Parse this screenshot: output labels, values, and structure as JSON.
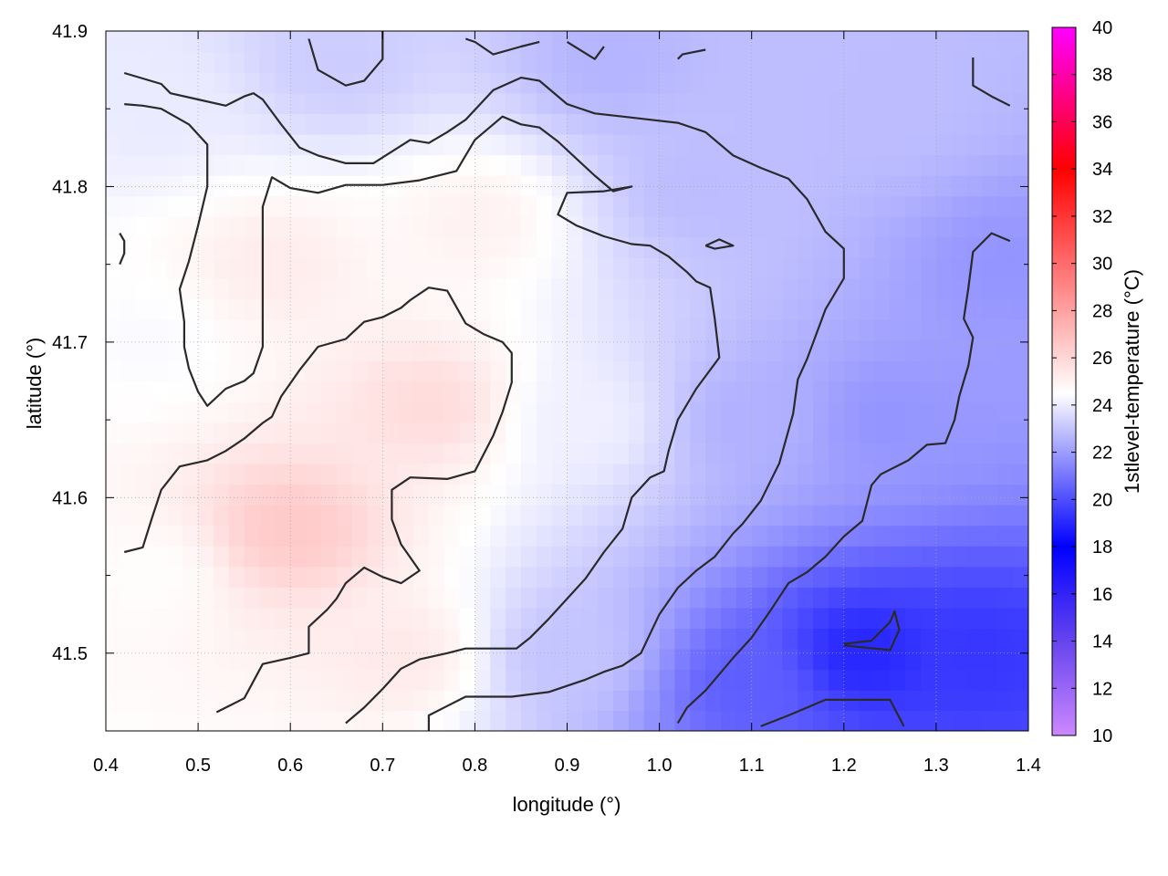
{
  "chart_data": {
    "type": "heatmap",
    "title": "",
    "xlabel": "longitude (°)",
    "ylabel": "latitude (°)",
    "xlim": [
      0.4,
      1.4
    ],
    "ylim": [
      41.45,
      41.9
    ],
    "xticks": [
      "0.4",
      "0.5",
      "0.6",
      "0.7",
      "0.8",
      "0.9",
      "1.0",
      "1.1",
      "1.2",
      "1.3",
      "1.4"
    ],
    "yticks": [
      "41.5",
      "41.6",
      "41.7",
      "41.8",
      "41.9"
    ],
    "grid": true,
    "colorbar": {
      "label": "1stlevel-temperature (°C)",
      "range": [
        10,
        40
      ],
      "ticks": [
        "10",
        "12",
        "14",
        "16",
        "18",
        "20",
        "22",
        "24",
        "26",
        "28",
        "30",
        "32",
        "34",
        "36",
        "38",
        "40"
      ],
      "palette": [
        {
          "value": 10,
          "color": "#cc88ff"
        },
        {
          "value": 14,
          "color": "#6644ee"
        },
        {
          "value": 18,
          "color": "#0000ff"
        },
        {
          "value": 24.5,
          "color": "#ffffff"
        },
        {
          "value": 34,
          "color": "#ff0000"
        },
        {
          "value": 40,
          "color": "#ff00ff"
        }
      ]
    },
    "field_anchors": [
      {
        "lon": 0.45,
        "lat": 41.85,
        "temp": 24.0
      },
      {
        "lon": 0.45,
        "lat": 41.7,
        "temp": 24.4
      },
      {
        "lon": 0.45,
        "lat": 41.55,
        "temp": 24.6
      },
      {
        "lon": 0.6,
        "lat": 41.58,
        "temp": 26.5
      },
      {
        "lon": 0.58,
        "lat": 41.75,
        "temp": 25.2
      },
      {
        "lon": 0.75,
        "lat": 41.66,
        "temp": 25.8
      },
      {
        "lon": 0.72,
        "lat": 41.5,
        "temp": 25.3
      },
      {
        "lon": 0.65,
        "lat": 41.88,
        "temp": 23.2
      },
      {
        "lon": 0.95,
        "lat": 41.88,
        "temp": 22.6
      },
      {
        "lon": 0.92,
        "lat": 41.65,
        "temp": 24.1
      },
      {
        "lon": 0.9,
        "lat": 41.5,
        "temp": 23.0
      },
      {
        "lon": 1.05,
        "lat": 41.8,
        "temp": 22.8
      },
      {
        "lon": 1.1,
        "lat": 41.65,
        "temp": 22.5
      },
      {
        "lon": 1.1,
        "lat": 41.48,
        "temp": 20.4
      },
      {
        "lon": 1.25,
        "lat": 41.85,
        "temp": 22.8
      },
      {
        "lon": 1.25,
        "lat": 41.65,
        "temp": 21.8
      },
      {
        "lon": 1.22,
        "lat": 41.5,
        "temp": 19.0
      },
      {
        "lon": 1.35,
        "lat": 41.5,
        "temp": 19.4
      },
      {
        "lon": 1.38,
        "lat": 41.75,
        "temp": 21.8
      },
      {
        "lon": 0.8,
        "lat": 41.78,
        "temp": 25.0
      }
    ],
    "contours": [
      [
        [
          0.42,
          41.873
        ],
        [
          0.46,
          41.866
        ],
        [
          0.47,
          41.86
        ],
        [
          0.5,
          41.856
        ],
        [
          0.53,
          41.852
        ],
        [
          0.55,
          41.858
        ],
        [
          0.56,
          41.86
        ],
        [
          0.57,
          41.856
        ],
        [
          0.59,
          41.84
        ],
        [
          0.61,
          41.825
        ],
        [
          0.63,
          41.82
        ],
        [
          0.66,
          41.815
        ],
        [
          0.69,
          41.815
        ],
        [
          0.73,
          41.83
        ],
        [
          0.75,
          41.828
        ],
        [
          0.77,
          41.835
        ],
        [
          0.79,
          41.843
        ],
        [
          0.82,
          41.862
        ],
        [
          0.85,
          41.87
        ],
        [
          0.87,
          41.868
        ],
        [
          0.9,
          41.853
        ],
        [
          0.93,
          41.847
        ],
        [
          0.96,
          41.845
        ],
        [
          0.99,
          41.843
        ],
        [
          1.02,
          41.841
        ],
        [
          1.05,
          41.835
        ],
        [
          1.08,
          41.82
        ],
        [
          1.11,
          41.812
        ],
        [
          1.14,
          41.805
        ],
        [
          1.16,
          41.792
        ],
        [
          1.18,
          41.771
        ],
        [
          1.2,
          41.76
        ],
        [
          1.2,
          41.741
        ],
        [
          1.18,
          41.721
        ],
        [
          1.16,
          41.689
        ],
        [
          1.15,
          41.676
        ],
        [
          1.145,
          41.654
        ],
        [
          1.13,
          41.622
        ],
        [
          1.11,
          41.598
        ],
        [
          1.09,
          41.583
        ],
        [
          1.08,
          41.577
        ],
        [
          1.06,
          41.562
        ],
        [
          1.04,
          41.553
        ],
        [
          1.02,
          41.542
        ],
        [
          1.0,
          41.525
        ],
        [
          0.98,
          41.5
        ],
        [
          0.96,
          41.492
        ],
        [
          0.94,
          41.488
        ],
        [
          0.92,
          41.483
        ],
        [
          0.88,
          41.475
        ],
        [
          0.84,
          41.472
        ],
        [
          0.79,
          41.472
        ],
        [
          0.77,
          41.466
        ],
        [
          0.75,
          41.46
        ],
        [
          0.75,
          41.45
        ]
      ],
      [
        [
          0.42,
          41.853
        ],
        [
          0.44,
          41.852
        ],
        [
          0.46,
          41.85
        ],
        [
          0.49,
          41.84
        ],
        [
          0.51,
          41.827
        ],
        [
          0.51,
          41.8
        ],
        [
          0.5,
          41.775
        ],
        [
          0.49,
          41.752
        ],
        [
          0.48,
          41.734
        ],
        [
          0.485,
          41.713
        ],
        [
          0.485,
          41.697
        ],
        [
          0.49,
          41.683
        ],
        [
          0.5,
          41.668
        ],
        [
          0.51,
          41.659
        ],
        [
          0.53,
          41.67
        ],
        [
          0.55,
          41.675
        ],
        [
          0.56,
          41.68
        ],
        [
          0.57,
          41.697
        ],
        [
          0.57,
          41.715
        ],
        [
          0.57,
          41.752
        ],
        [
          0.57,
          41.787
        ],
        [
          0.58,
          41.806
        ],
        [
          0.6,
          41.799
        ],
        [
          0.63,
          41.796
        ],
        [
          0.66,
          41.801
        ],
        [
          0.7,
          41.801
        ],
        [
          0.74,
          41.804
        ],
        [
          0.78,
          41.81
        ],
        [
          0.8,
          41.83
        ],
        [
          0.83,
          41.845
        ],
        [
          0.85,
          41.84
        ],
        [
          0.87,
          41.838
        ],
        [
          0.89,
          41.829
        ],
        [
          0.91,
          41.818
        ],
        [
          0.93,
          41.807
        ],
        [
          0.95,
          41.797
        ],
        [
          0.97,
          41.8
        ],
        [
          0.94,
          41.797
        ],
        [
          0.9,
          41.796
        ],
        [
          0.89,
          41.782
        ],
        [
          0.91,
          41.775
        ],
        [
          0.94,
          41.768
        ],
        [
          0.97,
          41.763
        ],
        [
          0.99,
          41.762
        ],
        [
          1.01,
          41.755
        ],
        [
          1.03,
          41.745
        ],
        [
          1.04,
          41.739
        ],
        [
          1.055,
          41.735
        ],
        [
          1.06,
          41.715
        ],
        [
          1.065,
          41.69
        ],
        [
          1.04,
          41.67
        ],
        [
          1.02,
          41.65
        ],
        [
          1.01,
          41.63
        ],
        [
          1.005,
          41.617
        ],
        [
          0.99,
          41.613
        ],
        [
          0.97,
          41.6
        ],
        [
          0.96,
          41.58
        ],
        [
          0.94,
          41.565
        ],
        [
          0.92,
          41.548
        ],
        [
          0.9,
          41.535
        ],
        [
          0.88,
          41.522
        ],
        [
          0.86,
          41.51
        ],
        [
          0.845,
          41.503
        ],
        [
          0.82,
          41.503
        ],
        [
          0.79,
          41.503
        ],
        [
          0.77,
          41.5
        ],
        [
          0.74,
          41.496
        ],
        [
          0.72,
          41.49
        ],
        [
          0.7,
          41.477
        ],
        [
          0.68,
          41.465
        ],
        [
          0.66,
          41.455
        ]
      ],
      [
        [
          0.42,
          41.565
        ],
        [
          0.44,
          41.568
        ],
        [
          0.45,
          41.587
        ],
        [
          0.46,
          41.605
        ],
        [
          0.48,
          41.62
        ],
        [
          0.51,
          41.624
        ],
        [
          0.53,
          41.63
        ],
        [
          0.55,
          41.638
        ],
        [
          0.57,
          41.648
        ],
        [
          0.58,
          41.652
        ],
        [
          0.59,
          41.665
        ],
        [
          0.61,
          41.682
        ],
        [
          0.63,
          41.697
        ],
        [
          0.66,
          41.702
        ],
        [
          0.68,
          41.713
        ],
        [
          0.7,
          41.716
        ],
        [
          0.72,
          41.722
        ],
        [
          0.73,
          41.727
        ],
        [
          0.75,
          41.735
        ],
        [
          0.77,
          41.733
        ],
        [
          0.79,
          41.712
        ],
        [
          0.81,
          41.705
        ],
        [
          0.83,
          41.7
        ],
        [
          0.84,
          41.693
        ],
        [
          0.84,
          41.674
        ],
        [
          0.83,
          41.655
        ],
        [
          0.82,
          41.64
        ],
        [
          0.8,
          41.617
        ],
        [
          0.77,
          41.612
        ],
        [
          0.73,
          41.613
        ],
        [
          0.71,
          41.605
        ],
        [
          0.71,
          41.586
        ],
        [
          0.72,
          41.57
        ],
        [
          0.74,
          41.553
        ],
        [
          0.72,
          41.545
        ],
        [
          0.7,
          41.549
        ],
        [
          0.68,
          41.555
        ],
        [
          0.66,
          41.545
        ],
        [
          0.65,
          41.535
        ],
        [
          0.64,
          41.528
        ],
        [
          0.62,
          41.517
        ],
        [
          0.62,
          41.5
        ],
        [
          0.6,
          41.497
        ],
        [
          0.57,
          41.493
        ],
        [
          0.55,
          41.471
        ],
        [
          0.52,
          41.462
        ]
      ],
      [
        [
          0.62,
          41.895
        ],
        [
          0.63,
          41.875
        ],
        [
          0.66,
          41.865
        ],
        [
          0.68,
          41.868
        ],
        [
          0.7,
          41.882
        ],
        [
          0.7,
          41.9
        ]
      ],
      [
        [
          0.79,
          41.895
        ],
        [
          0.8,
          41.893
        ],
        [
          0.82,
          41.885
        ],
        [
          0.85,
          41.89
        ],
        [
          0.87,
          41.893
        ]
      ],
      [
        [
          0.9,
          41.893
        ],
        [
          0.93,
          41.882
        ],
        [
          0.94,
          41.89
        ]
      ],
      [
        [
          1.02,
          41.882
        ],
        [
          1.025,
          41.885
        ],
        [
          1.05,
          41.888
        ]
      ],
      [
        [
          1.34,
          41.883
        ],
        [
          1.34,
          41.865
        ],
        [
          1.36,
          41.858
        ],
        [
          1.38,
          41.852
        ]
      ],
      [
        [
          0.415,
          41.77
        ],
        [
          0.42,
          41.765
        ],
        [
          0.42,
          41.757
        ],
        [
          0.415,
          41.75
        ]
      ],
      [
        [
          1.38,
          41.765
        ],
        [
          1.36,
          41.77
        ],
        [
          1.34,
          41.758
        ],
        [
          1.335,
          41.735
        ],
        [
          1.33,
          41.715
        ],
        [
          1.34,
          41.703
        ],
        [
          1.335,
          41.685
        ],
        [
          1.33,
          41.675
        ],
        [
          1.325,
          41.665
        ],
        [
          1.32,
          41.65
        ],
        [
          1.31,
          41.635
        ],
        [
          1.29,
          41.634
        ],
        [
          1.27,
          41.624
        ],
        [
          1.24,
          41.615
        ],
        [
          1.23,
          41.608
        ],
        [
          1.22,
          41.585
        ],
        [
          1.2,
          41.575
        ],
        [
          1.18,
          41.562
        ],
        [
          1.16,
          41.552
        ],
        [
          1.14,
          41.545
        ],
        [
          1.12,
          41.527
        ],
        [
          1.1,
          41.51
        ],
        [
          1.08,
          41.497
        ],
        [
          1.05,
          41.476
        ],
        [
          1.03,
          41.465
        ],
        [
          1.02,
          41.455
        ]
      ],
      [
        [
          1.11,
          41.453
        ],
        [
          1.14,
          41.46
        ],
        [
          1.18,
          41.47
        ],
        [
          1.25,
          41.47
        ],
        [
          1.265,
          41.453
        ]
      ],
      [
        [
          1.2,
          41.506
        ],
        [
          1.23,
          41.508
        ],
        [
          1.25,
          41.52
        ],
        [
          1.255,
          41.527
        ],
        [
          1.26,
          41.515
        ],
        [
          1.25,
          41.502
        ],
        [
          1.2,
          41.505
        ]
      ],
      [
        [
          1.05,
          41.762
        ],
        [
          1.065,
          41.766
        ],
        [
          1.08,
          41.762
        ],
        [
          1.06,
          41.76
        ],
        [
          1.05,
          41.762
        ]
      ]
    ]
  }
}
